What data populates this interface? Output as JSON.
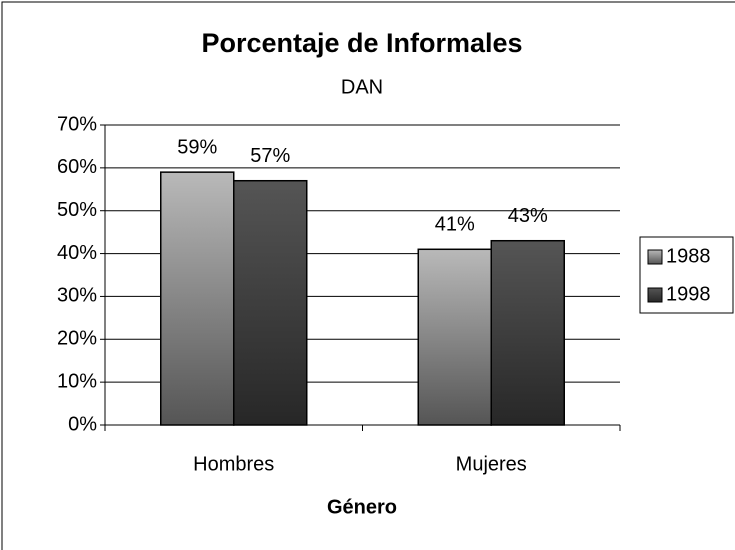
{
  "chart_data": {
    "type": "bar",
    "title": "Porcentaje de Informales",
    "subtitle": "DAN",
    "x_label": "Género",
    "categories": [
      "Hombres",
      "Mujeres"
    ],
    "series": [
      {
        "name": "1988",
        "color": "#9a9a9a",
        "values": [
          59,
          41
        ],
        "value_labels": [
          "59%",
          "41%"
        ]
      },
      {
        "name": "1998",
        "color": "#474747",
        "values": [
          57,
          43
        ],
        "value_labels": [
          "57%",
          "43%"
        ]
      }
    ],
    "ylim": [
      0,
      70
    ],
    "yticks": [
      {
        "value": 0,
        "label": "0%"
      },
      {
        "value": 10,
        "label": "10%"
      },
      {
        "value": 20,
        "label": "20%"
      },
      {
        "value": 30,
        "label": "30%"
      },
      {
        "value": 40,
        "label": "40%"
      },
      {
        "value": 50,
        "label": "50%"
      },
      {
        "value": 60,
        "label": "60%"
      },
      {
        "value": 70,
        "label": "70%"
      }
    ],
    "grid": true,
    "legend": "right"
  }
}
